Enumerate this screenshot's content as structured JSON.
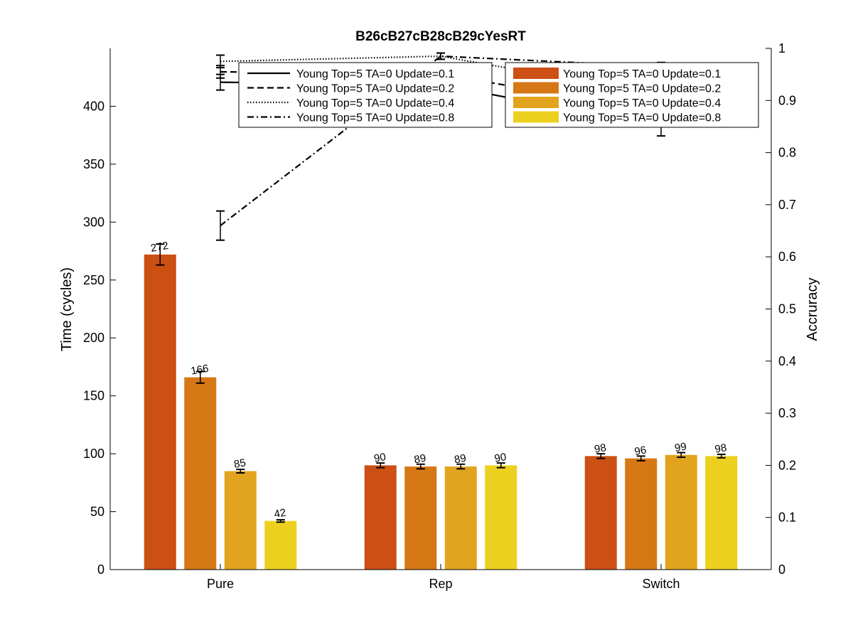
{
  "chart_data": {
    "type": "bar",
    "title": "B26cB27cB28cB29cYesRT",
    "categories": [
      "Pure",
      "Rep",
      "Switch"
    ],
    "ylabel": "Time (cycles)",
    "ylim": [
      0,
      450
    ],
    "yticks": [
      0,
      50,
      100,
      150,
      200,
      250,
      300,
      350,
      400
    ],
    "y2label": "Accruracy",
    "y2lim": [
      0,
      1.0
    ],
    "y2ticks": [
      0,
      0.1,
      0.2,
      0.3,
      0.4,
      0.5,
      0.6,
      0.7,
      0.8,
      0.9,
      1
    ],
    "grid": false,
    "bar_series": [
      {
        "name": "Young Top=5 TA=0 Update=0.1",
        "color": "#cc4f14",
        "values": [
          272,
          90,
          98
        ],
        "errors": [
          9,
          2,
          2
        ],
        "labels": [
          "272",
          "90",
          "98"
        ]
      },
      {
        "name": "Young Top=5 TA=0 Update=0.2",
        "color": "#d67716",
        "values": [
          166,
          89,
          96
        ],
        "errors": [
          5,
          2,
          2
        ],
        "labels": [
          "166",
          "89",
          "96"
        ]
      },
      {
        "name": "Young Top=5 TA=0 Update=0.4",
        "color": "#e2a31e",
        "values": [
          85,
          89,
          99
        ],
        "errors": [
          1.5,
          2,
          2
        ],
        "labels": [
          "85",
          "89",
          "99"
        ]
      },
      {
        "name": "Young Top=5 TA=0 Update=0.8",
        "color": "#ecd01f",
        "values": [
          42,
          90,
          98
        ],
        "errors": [
          1,
          2,
          1.5
        ],
        "labels": [
          "42",
          "90",
          "98"
        ]
      }
    ],
    "line_series": [
      {
        "name": "Young Top=5 TA=0 Update=0.1",
        "dash": "solid",
        "values": [
          0.935,
          0.93,
          0.85
        ],
        "errors": [
          0.015,
          0.012,
          0.018
        ]
      },
      {
        "name": "Young Top=5 TA=0 Update=0.2",
        "dash": "dashed",
        "values": [
          0.955,
          0.95,
          0.88
        ],
        "errors": [
          0.012,
          0.01,
          0.015
        ]
      },
      {
        "name": "Young Top=5 TA=0 Update=0.4",
        "dash": "dotted",
        "values": [
          0.975,
          0.985,
          0.91
        ],
        "errors": [
          0.012,
          0.006,
          0.015
        ]
      },
      {
        "name": "Young Top=5 TA=0 Update=0.8",
        "dash": "dashdot",
        "values": [
          0.66,
          0.985,
          0.965
        ],
        "errors": [
          0.028,
          0.006,
          0.008
        ]
      }
    ],
    "line_legend_position": "top-center",
    "bar_legend_position": "top-right"
  }
}
